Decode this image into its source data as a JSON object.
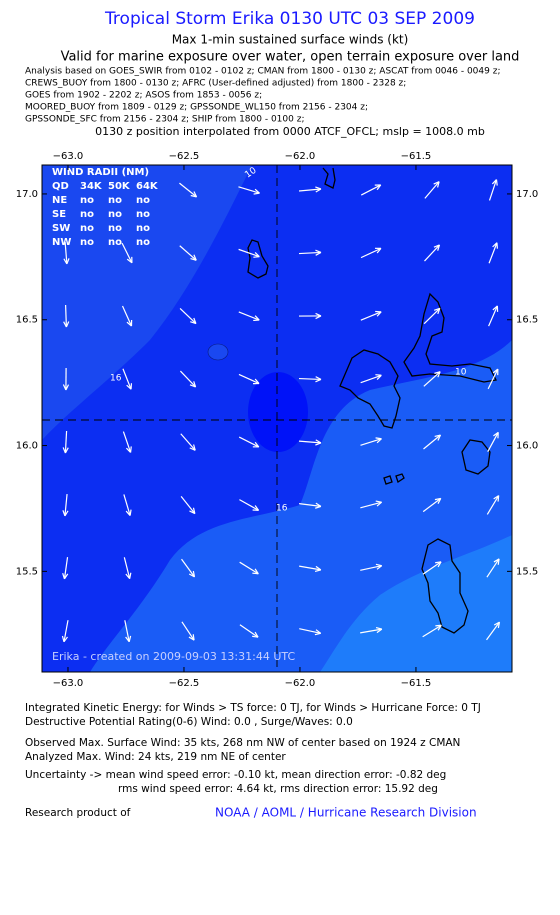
{
  "header": {
    "title": "Tropical Storm Erika 0130 UTC 03 SEP 2009",
    "subtitle": "Max 1-min sustained surface winds (kt)",
    "validity": "Valid for marine exposure over water, open terrain exposure over land",
    "sources": [
      "Analysis based on  GOES_SWIR from 0102 - 0102 z;  CMAN from 1800 - 0130 z;  ASCAT from 0046 - 0049 z;",
      "CREWS_BUOY from 1800 - 0130 z;  AFRC (User-defined adjusted) from 1800 - 2328 z;",
      "GOES from 1902 - 2202 z;  ASOS from 1853 - 0056 z;",
      "MOORED_BUOY from 1809 - 0129 z;  GPSSONDE_WL150 from 2156 - 2304 z;",
      "GPSSONDE_SFC from 2156 - 2304 z;  SHIP from 1800 - 0100 z;"
    ],
    "position_note": "0130 z position interpolated from 0000 ATCF_OFCL; mslp = 1008.0 mb"
  },
  "map": {
    "xlim": [
      -63.112,
      -61.086
    ],
    "ylim": [
      15.1,
      17.115
    ],
    "xticks": [
      {
        "value": -63,
        "label": "−63.0"
      },
      {
        "value": -62.5,
        "label": "−62.5"
      },
      {
        "value": -62,
        "label": "−62.0"
      },
      {
        "value": -61.5,
        "label": "−61.5"
      }
    ],
    "yticks": [
      {
        "value": 17,
        "label": "17.0"
      },
      16.5,
      {
        "value": 16,
        "label": "16.0"
      },
      15.5
    ],
    "contour_labels": [
      "10",
      "16",
      "16",
      "10"
    ],
    "wind_radii": {
      "title": "WIND RADII (NM)",
      "columns": [
        "QD",
        "34K",
        "50K",
        "64K"
      ],
      "rows": [
        [
          "NE",
          "no",
          "no",
          "no"
        ],
        [
          "SE",
          "no",
          "no",
          "no"
        ],
        [
          "SW",
          "no",
          "no",
          "no"
        ],
        [
          "NW",
          "no",
          "no",
          "no"
        ]
      ]
    },
    "credit": "Erika - created on 2009-09-03 13:31:44 UTC"
  },
  "footer": {
    "lines": [
      "Integrated Kinetic Energy:  for Winds > TS force: 0 TJ,  for Winds > Hurricane Force: 0 TJ",
      "Destructive Potential Rating(0-6)   Wind: 0.0 , Surge/Waves: 0.0",
      "Observed Max. Surface Wind: 35 kts, 268 nm NW of center based on 1924 z CMAN",
      "Analyzed Max. Wind: 24 kts, 219 nm NE of center",
      "Uncertainty -> mean wind speed error:  -0.10 kt,   mean direction error:  -0.82 deg",
      "rms wind speed error: 4.64 kt,   rms direction error: 15.92 deg"
    ],
    "research": "Research product of",
    "org": "NOAA / AOML / Hurricane Research Division"
  }
}
